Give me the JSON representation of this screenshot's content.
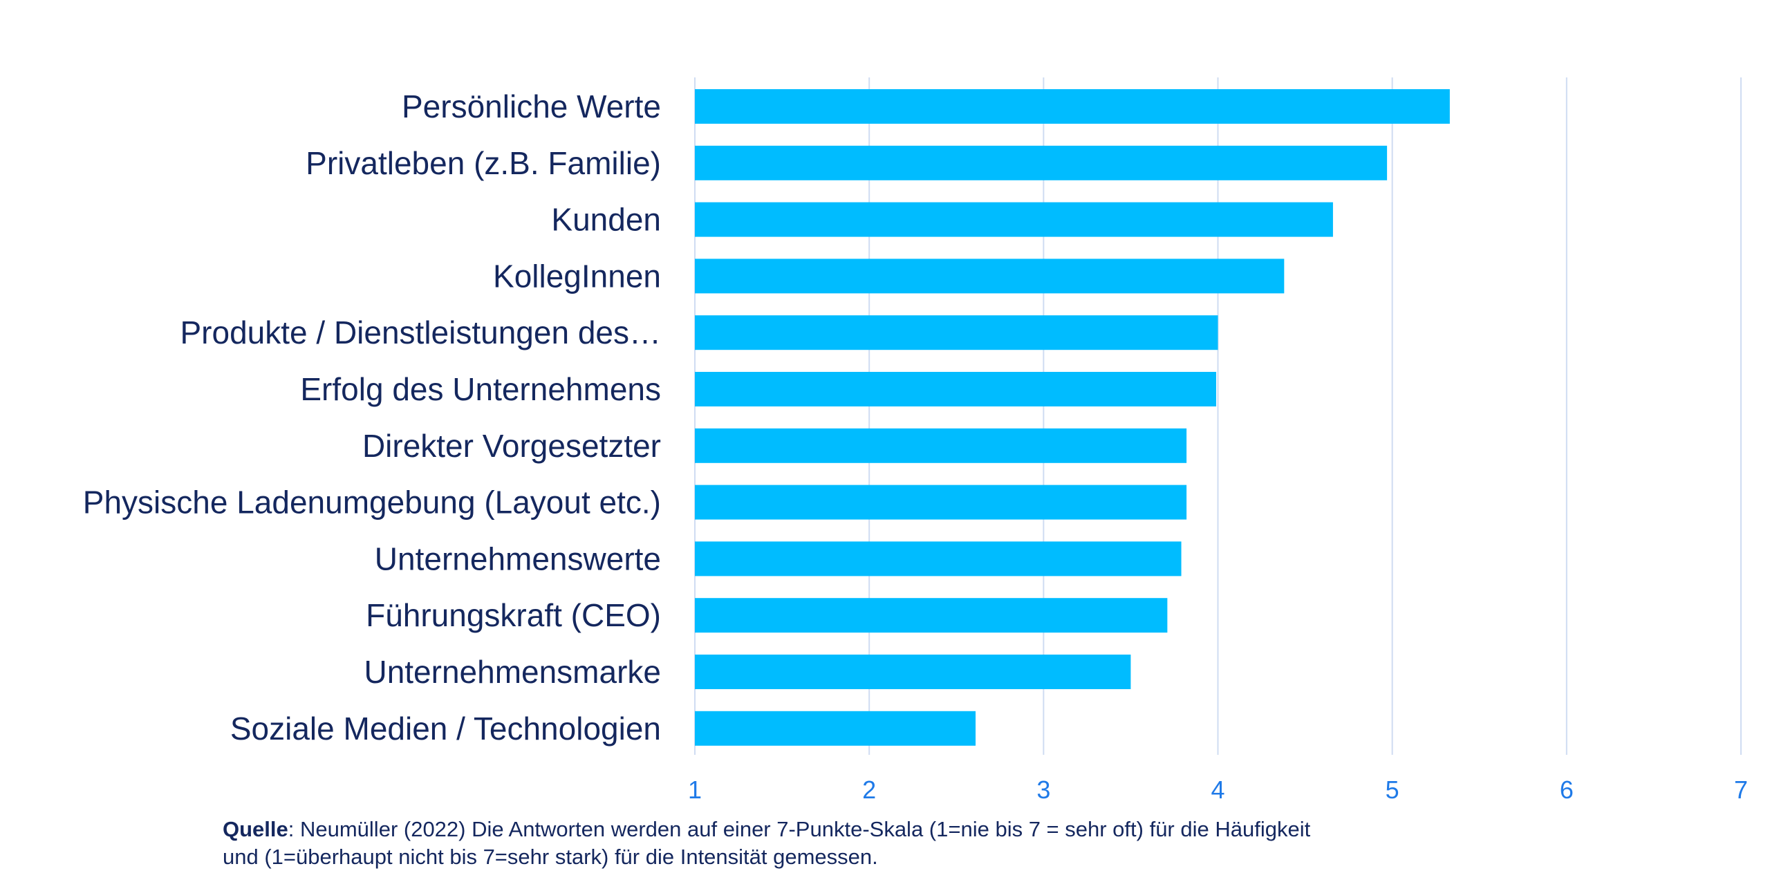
{
  "chart_data": {
    "type": "bar",
    "orientation": "horizontal",
    "categories": [
      "Persönliche Werte",
      "Privatleben (z.B. Familie)",
      "Kunden",
      "KollegInnen",
      "Produkte / Dienstleistungen des…",
      "Erfolg des Unternehmens",
      "Direkter Vorgesetzter",
      "Physische Ladenumgebung (Layout etc.)",
      "Unternehmenswerte",
      "Führungskraft (CEO)",
      "Unternehmensmarke",
      "Soziale Medien / Technologien"
    ],
    "values": [
      5.33,
      4.97,
      4.66,
      4.38,
      4.0,
      3.99,
      3.82,
      3.82,
      3.79,
      3.71,
      3.5,
      2.61
    ],
    "xlim": [
      1,
      7
    ],
    "xticks": [
      "1",
      "2",
      "3",
      "4",
      "5",
      "6",
      "7"
    ],
    "grid": true,
    "bar_color": "#00bcff",
    "grid_color": "#cfdcf2",
    "label_color": "#14275e",
    "tick_color": "#1f7ae8"
  },
  "source": {
    "label": "Quelle",
    "text_line1": ": Neumüller (2022)  Die Antworten werden auf einer 7-Punkte-Skala (1=nie bis 7 = sehr oft) für die Häufigkeit",
    "text_line2": "und (1=überhaupt nicht bis 7=sehr stark) für die Intensität gemessen."
  }
}
